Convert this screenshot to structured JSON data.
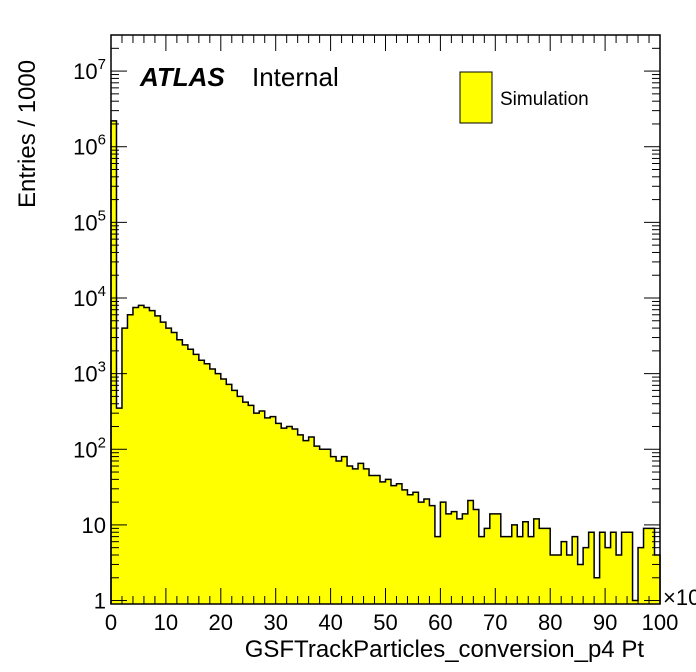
{
  "chart_data": {
    "type": "bar",
    "histogram": true,
    "xlabel": "GSFTrackParticles_conversion_p4 Pt",
    "ylabel": "Entries / 1000",
    "x_multiplier_label": "×10",
    "xlim": [
      0,
      100
    ],
    "ylim": [
      0.9,
      30000000
    ],
    "yscale": "log",
    "bin_width": 1,
    "fill_color": "#ffff00",
    "edge_color": "#000000",
    "atlas_label": "ATLAS",
    "atlas_status": "Internal",
    "legend": {
      "label": "Simulation",
      "position": "top-right"
    },
    "x_ticks": [
      {
        "value": 0,
        "label": "0"
      },
      {
        "value": 10,
        "label": "10"
      },
      {
        "value": 20,
        "label": "20"
      },
      {
        "value": 30,
        "label": "30"
      },
      {
        "value": 40,
        "label": "40"
      },
      {
        "value": 50,
        "label": "50"
      },
      {
        "value": 60,
        "label": "60"
      },
      {
        "value": 70,
        "label": "70"
      },
      {
        "value": 80,
        "label": "80"
      },
      {
        "value": 90,
        "label": "90"
      },
      {
        "value": 100,
        "label": "100"
      }
    ],
    "y_ticks": [
      {
        "value": 1,
        "base": "1",
        "exp": ""
      },
      {
        "value": 10,
        "base": "10",
        "exp": ""
      },
      {
        "value": 100,
        "base": "10",
        "exp": "2"
      },
      {
        "value": 1000,
        "base": "10",
        "exp": "3"
      },
      {
        "value": 10000,
        "base": "10",
        "exp": "4"
      },
      {
        "value": 100000,
        "base": "10",
        "exp": "5"
      },
      {
        "value": 1000000,
        "base": "10",
        "exp": "6"
      },
      {
        "value": 10000000,
        "base": "10",
        "exp": "7"
      }
    ],
    "values": [
      2200000,
      350,
      4000,
      6000,
      7500,
      8000,
      7500,
      6800,
      5800,
      4800,
      4000,
      3500,
      2800,
      2400,
      2100,
      1800,
      1500,
      1350,
      1150,
      1000,
      850,
      720,
      600,
      500,
      420,
      380,
      300,
      320,
      260,
      270,
      220,
      190,
      200,
      185,
      155,
      130,
      145,
      110,
      100,
      100,
      80,
      70,
      80,
      60,
      55,
      65,
      55,
      45,
      45,
      37,
      40,
      33,
      35,
      29,
      25,
      27,
      20,
      22,
      18,
      7,
      20,
      14,
      15,
      12,
      14,
      21,
      16,
      7,
      9,
      14,
      14,
      7,
      7,
      10,
      7,
      11,
      7,
      12,
      9,
      9,
      4,
      4,
      6,
      4,
      7,
      3,
      5,
      8,
      2,
      8,
      5,
      8,
      4,
      8,
      8,
      1,
      5,
      9,
      9,
      4
    ]
  }
}
